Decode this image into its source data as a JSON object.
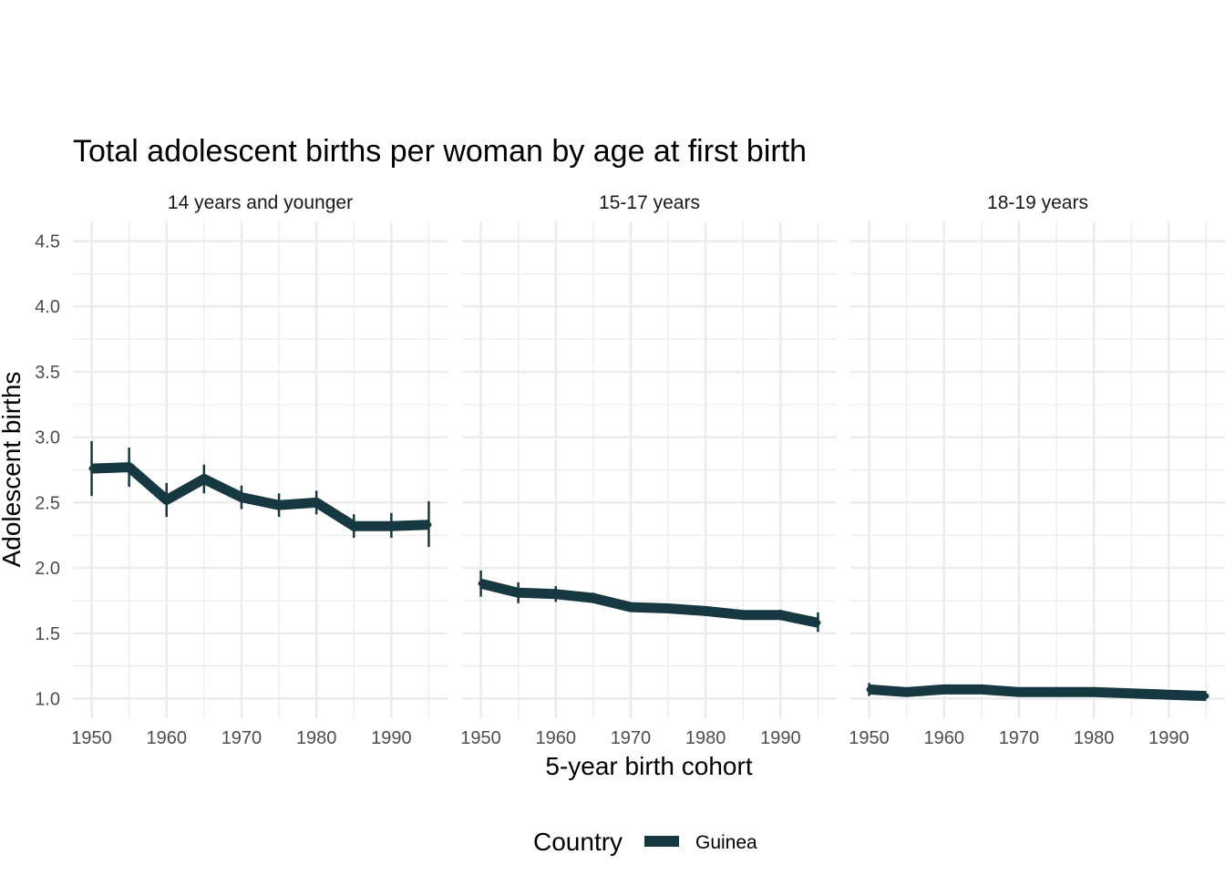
{
  "chart_data": {
    "type": "line",
    "title": "Total adolescent births per woman by age at first birth",
    "xlabel": "5-year birth cohort",
    "ylabel": "Adolescent births",
    "ylim": [
      0.85,
      4.65
    ],
    "yticks": [
      "1.0",
      "1.5",
      "2.0",
      "2.5",
      "3.0",
      "3.5",
      "4.0",
      "4.5"
    ],
    "xticks": [
      "1950",
      "1960",
      "1970",
      "1980",
      "1990"
    ],
    "grid": true,
    "legend": {
      "title": "Country",
      "position": "bottom",
      "entries": [
        {
          "label": "Guinea",
          "color": "#163840"
        }
      ]
    },
    "colors": {
      "series": "#163840",
      "grid": "#ebebeb"
    },
    "x": [
      1950,
      1955,
      1960,
      1965,
      1970,
      1975,
      1980,
      1985,
      1990,
      1995
    ],
    "panels": [
      {
        "label": "14 years and younger",
        "series": [
          {
            "name": "Guinea",
            "values": [
              2.76,
              2.77,
              2.52,
              2.68,
              2.54,
              2.48,
              2.5,
              2.32,
              2.32,
              2.33
            ],
            "lower": [
              2.55,
              2.62,
              2.39,
              2.57,
              2.45,
              2.39,
              2.41,
              2.23,
              2.23,
              2.16
            ],
            "upper": [
              2.97,
              2.92,
              2.65,
              2.79,
              2.63,
              2.57,
              2.59,
              2.41,
              2.42,
              2.51
            ]
          }
        ]
      },
      {
        "label": "15-17 years",
        "series": [
          {
            "name": "Guinea",
            "values": [
              1.88,
              1.81,
              1.8,
              1.77,
              1.7,
              1.69,
              1.67,
              1.64,
              1.64,
              1.58
            ],
            "lower": [
              1.78,
              1.73,
              1.74,
              1.73,
              1.67,
              1.66,
              1.64,
              1.61,
              1.6,
              1.51
            ],
            "upper": [
              1.98,
              1.89,
              1.86,
              1.81,
              1.73,
              1.72,
              1.7,
              1.67,
              1.68,
              1.66
            ]
          }
        ]
      },
      {
        "label": "18-19 years",
        "series": [
          {
            "name": "Guinea",
            "values": [
              1.07,
              1.05,
              1.07,
              1.07,
              1.05,
              1.05,
              1.05,
              1.04,
              1.03,
              1.02
            ],
            "lower": [
              1.02,
              1.03,
              1.05,
              1.05,
              1.03,
              1.03,
              1.03,
              1.02,
              1.01,
              1.0
            ],
            "upper": [
              1.12,
              1.07,
              1.09,
              1.09,
              1.07,
              1.07,
              1.07,
              1.06,
              1.05,
              1.04
            ]
          }
        ]
      }
    ]
  }
}
